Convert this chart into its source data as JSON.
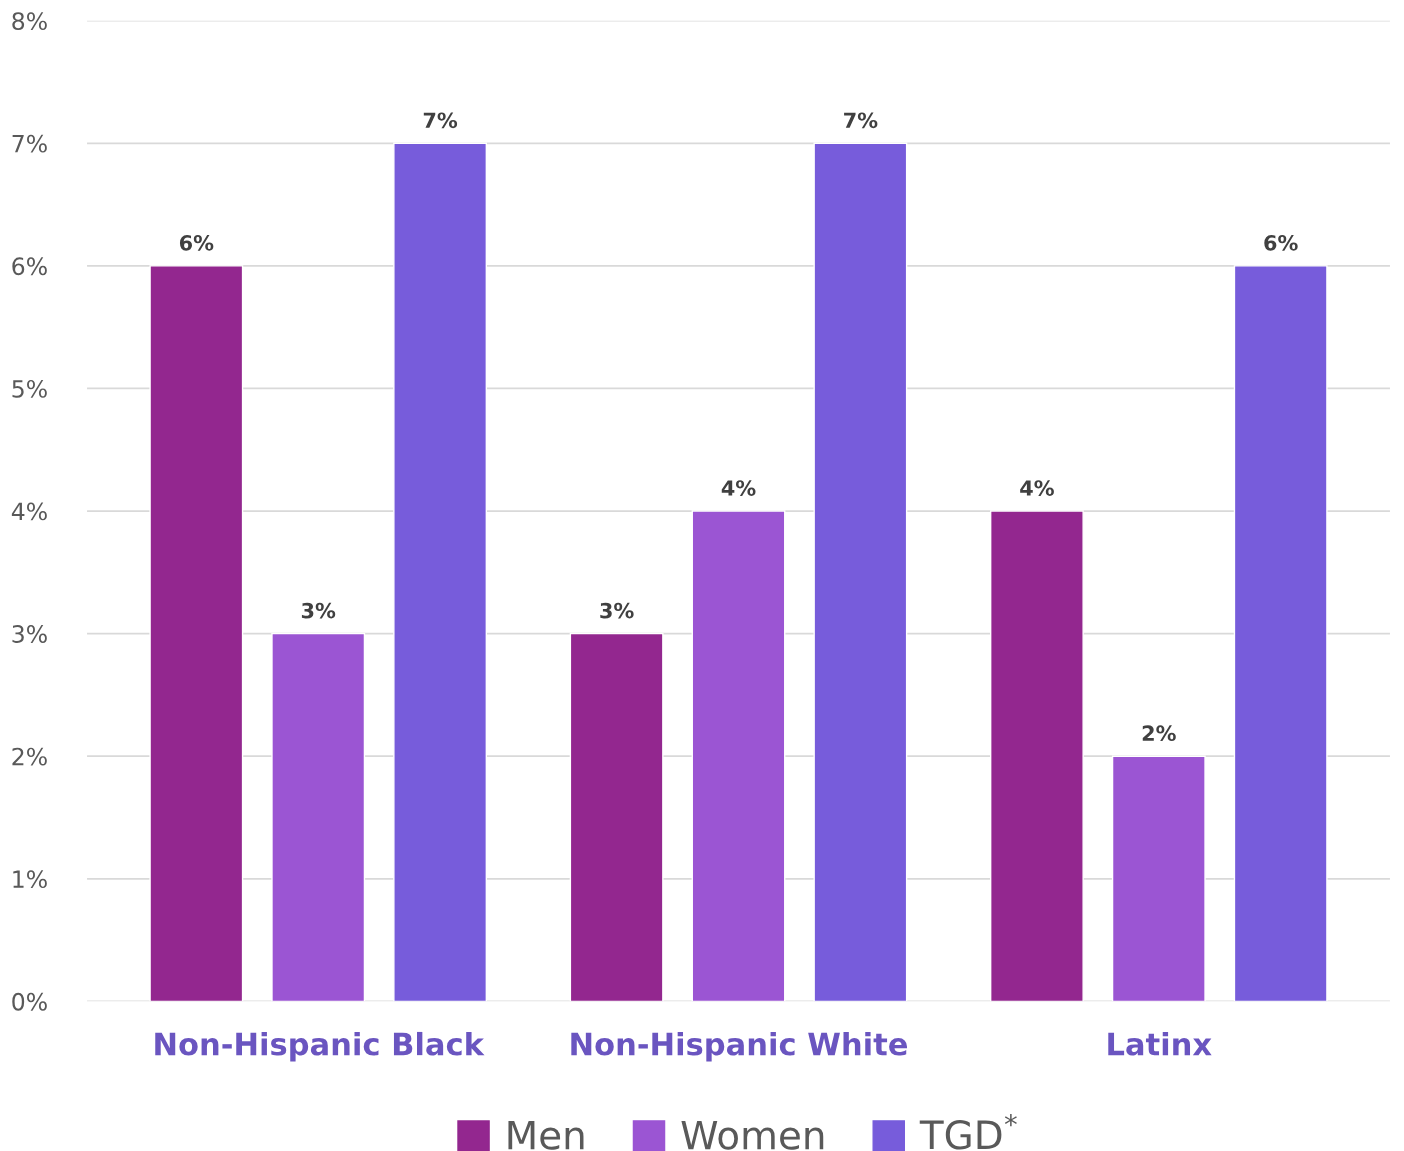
{
  "chart_data": {
    "type": "bar",
    "categories": [
      "Non-Hispanic Black",
      "Non-Hispanic White",
      "Latinx"
    ],
    "series": [
      {
        "name": "Men",
        "color": "#93278f",
        "values": [
          6,
          3,
          4
        ],
        "value_labels": [
          "6%",
          "3%",
          "4%"
        ]
      },
      {
        "name": "Women",
        "color": "#9b55d3",
        "values": [
          3,
          4,
          2
        ],
        "value_labels": [
          "3%",
          "4%",
          "2%"
        ]
      },
      {
        "name": "TGD$^{*}$",
        "color": "#775cdb",
        "values": [
          7,
          7,
          6
        ],
        "value_labels": [
          "7%",
          "7%",
          "6%"
        ]
      }
    ],
    "ylim": [
      0,
      8
    ],
    "yticks": [
      {
        "value": 0,
        "label": "0%"
      },
      {
        "value": 1,
        "label": "1%"
      },
      {
        "value": 2,
        "label": "2%"
      },
      {
        "value": 3,
        "label": "3%"
      },
      {
        "value": 4,
        "label": "4%"
      },
      {
        "value": 5,
        "label": "5%"
      },
      {
        "value": 6,
        "label": "6%"
      },
      {
        "value": 7,
        "label": "7%"
      },
      {
        "value": 8,
        "label": "8%"
      }
    ],
    "grid": "y",
    "legend": "bottom"
  }
}
